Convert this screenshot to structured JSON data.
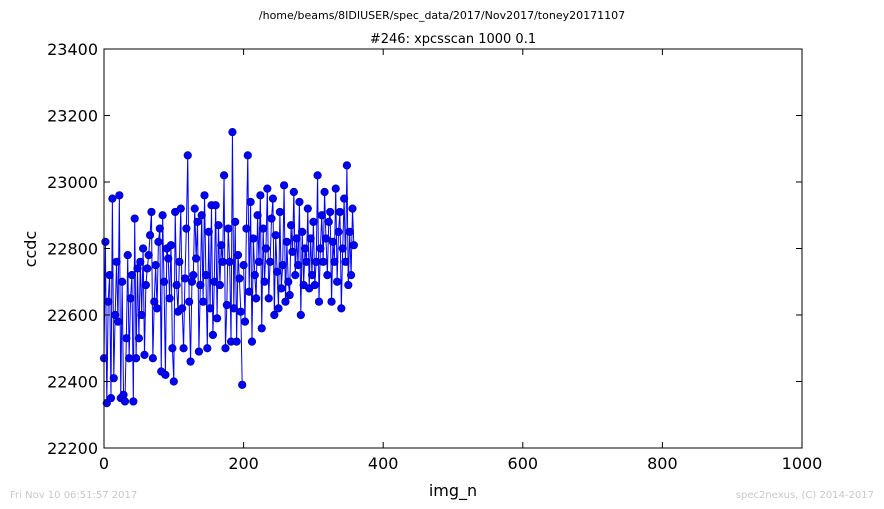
{
  "suptitle": "/home/beams/8IDIUSER/spec_data/2017/Nov2017/toney20171107",
  "footer_left": "Fri Nov 10 06:51:57 2017",
  "footer_right": "spec2nexus, (C) 2014-2017",
  "colors": {
    "series": "#0000ff",
    "axes": "#000000",
    "footer": "#c8c8c8"
  },
  "chart_data": {
    "type": "line",
    "title": "#246: xpcsscan 1000 0.1",
    "xlabel": "img_n",
    "ylabel": "ccdc",
    "xlim": [
      0,
      1000
    ],
    "ylim": [
      22200,
      23400
    ],
    "xticks": [
      0,
      200,
      400,
      600,
      800,
      1000
    ],
    "yticks": [
      22200,
      22400,
      22600,
      22800,
      23000,
      23200,
      23400
    ],
    "grid": false,
    "marker": "circle",
    "series": [
      {
        "x_start": 0,
        "x_step": 2,
        "values": [
          22470,
          22820,
          22335,
          22640,
          22720,
          22350,
          22950,
          22410,
          22600,
          22760,
          22580,
          22960,
          22350,
          22700,
          22360,
          22340,
          22530,
          22780,
          22470,
          22650,
          22720,
          22340,
          22890,
          22470,
          22740,
          22530,
          22760,
          22600,
          22800,
          22480,
          22690,
          22740,
          22780,
          22840,
          22910,
          22470,
          22640,
          22750,
          22620,
          22820,
          22860,
          22430,
          22900,
          22700,
          22420,
          22800,
          22770,
          22650,
          22810,
          22500,
          22400,
          22910,
          22690,
          22610,
          22760,
          22920,
          22620,
          22500,
          22710,
          22860,
          23080,
          22640,
          22460,
          22700,
          22720,
          22920,
          22770,
          22880,
          22490,
          22690,
          22900,
          22640,
          22960,
          22720,
          22500,
          22850,
          22620,
          22930,
          22540,
          22700,
          22930,
          22590,
          22870,
          22690,
          22810,
          22760,
          23020,
          22500,
          22630,
          22860,
          22760,
          22520,
          23150,
          22620,
          22880,
          22520,
          22780,
          22710,
          22610,
          22390
        ]
      },
      {
        "x_start": 200,
        "x_step": 2,
        "values": [
          22750,
          22580,
          22860,
          23080,
          22670,
          22940,
          22520,
          22830,
          22720,
          22650,
          22900,
          22760,
          22960,
          22560,
          22860,
          22700,
          22800,
          22980,
          22650,
          22760,
          22890,
          22950,
          22600,
          22840,
          22730,
          22620,
          22910,
          22680,
          22750,
          22990,
          22640,
          22820,
          22700,
          22660,
          22870,
          22790,
          22970,
          22720,
          22830,
          22750,
          22940,
          22600,
          22850,
          22690,
          22800,
          22760,
          22920,
          22680,
          22830,
          22720,
          22880,
          22690,
          22760,
          23020,
          22640,
          22800,
          22900,
          22760,
          22970,
          22830,
          22720,
          22880,
          22910,
          22640,
          22820,
          22760,
          22980,
          22700,
          22850,
          22910,
          22620,
          22800,
          22950,
          22760,
          23050,
          22690,
          22850,
          22720,
          22920,
          22810
        ]
      }
    ]
  }
}
